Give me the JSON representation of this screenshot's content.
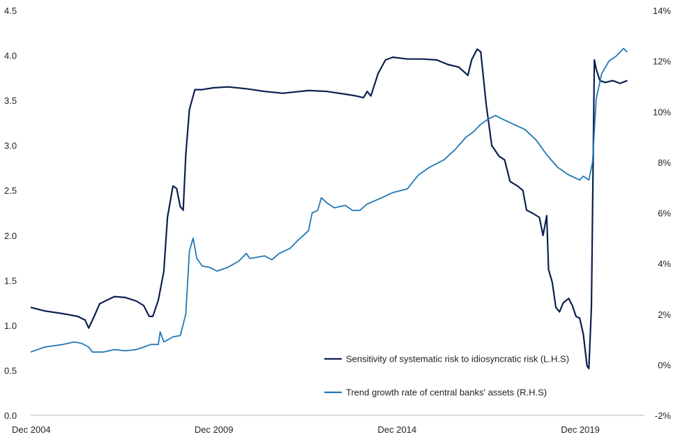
{
  "chart_data": {
    "type": "line",
    "title": "",
    "xlabel": "",
    "x_range": [
      2004.917,
      2021.667
    ],
    "x_ticks": [
      {
        "label": "Dec 2004",
        "value": 2004.917
      },
      {
        "label": "Dec 2009",
        "value": 2009.917
      },
      {
        "label": "Dec 2014",
        "value": 2014.917
      },
      {
        "label": "Dec 2019",
        "value": 2019.917
      }
    ],
    "y_left": {
      "label": "",
      "range": [
        0,
        4.5
      ],
      "ticks": [
        "0.0",
        "0.5",
        "1.0",
        "1.5",
        "2.0",
        "2.5",
        "3.0",
        "3.5",
        "4.0",
        "4.5"
      ],
      "tick_values": [
        0,
        0.5,
        1.0,
        1.5,
        2.0,
        2.5,
        3.0,
        3.5,
        4.0,
        4.5
      ]
    },
    "y_right": {
      "label": "",
      "range": [
        -2,
        14
      ],
      "ticks": [
        "-2%",
        "0%",
        "2%",
        "4%",
        "6%",
        "8%",
        "10%",
        "12%",
        "14%"
      ],
      "tick_values": [
        -2,
        0,
        2,
        4,
        6,
        8,
        10,
        12,
        14
      ]
    },
    "grid": false,
    "legend_position": "bottom-right",
    "series": [
      {
        "name": "Sensitivity of systematic risk to idiosyncratic risk (L.H.S)",
        "axis": "left",
        "color": "#0b1f4f",
        "points": [
          [
            2004.917,
            1.2
          ],
          [
            2005.3,
            1.16
          ],
          [
            2005.8,
            1.13
          ],
          [
            2006.2,
            1.1
          ],
          [
            2006.4,
            1.06
          ],
          [
            2006.5,
            0.97
          ],
          [
            2006.65,
            1.1
          ],
          [
            2006.8,
            1.24
          ],
          [
            2007.0,
            1.28
          ],
          [
            2007.2,
            1.32
          ],
          [
            2007.5,
            1.31
          ],
          [
            2007.8,
            1.27
          ],
          [
            2008.0,
            1.22
          ],
          [
            2008.15,
            1.1
          ],
          [
            2008.25,
            1.1
          ],
          [
            2008.4,
            1.28
          ],
          [
            2008.55,
            1.6
          ],
          [
            2008.65,
            2.2
          ],
          [
            2008.8,
            2.55
          ],
          [
            2008.9,
            2.52
          ],
          [
            2009.0,
            2.32
          ],
          [
            2009.08,
            2.28
          ],
          [
            2009.15,
            2.9
          ],
          [
            2009.25,
            3.4
          ],
          [
            2009.4,
            3.62
          ],
          [
            2009.6,
            3.62
          ],
          [
            2009.9,
            3.64
          ],
          [
            2010.3,
            3.65
          ],
          [
            2010.8,
            3.63
          ],
          [
            2011.3,
            3.6
          ],
          [
            2011.8,
            3.58
          ],
          [
            2012.5,
            3.61
          ],
          [
            2013.0,
            3.6
          ],
          [
            2013.5,
            3.57
          ],
          [
            2013.8,
            3.55
          ],
          [
            2014.0,
            3.53
          ],
          [
            2014.1,
            3.6
          ],
          [
            2014.2,
            3.55
          ],
          [
            2014.4,
            3.8
          ],
          [
            2014.6,
            3.95
          ],
          [
            2014.8,
            3.98
          ],
          [
            2015.2,
            3.96
          ],
          [
            2015.6,
            3.96
          ],
          [
            2016.0,
            3.95
          ],
          [
            2016.3,
            3.9
          ],
          [
            2016.6,
            3.87
          ],
          [
            2016.85,
            3.78
          ],
          [
            2016.95,
            3.95
          ],
          [
            2017.1,
            4.07
          ],
          [
            2017.2,
            4.04
          ],
          [
            2017.35,
            3.45
          ],
          [
            2017.5,
            3.0
          ],
          [
            2017.7,
            2.88
          ],
          [
            2017.85,
            2.84
          ],
          [
            2018.0,
            2.6
          ],
          [
            2018.2,
            2.55
          ],
          [
            2018.35,
            2.5
          ],
          [
            2018.45,
            2.28
          ],
          [
            2018.6,
            2.25
          ],
          [
            2018.8,
            2.2
          ],
          [
            2018.9,
            2.0
          ],
          [
            2019.0,
            2.22
          ],
          [
            2019.05,
            1.62
          ],
          [
            2019.15,
            1.48
          ],
          [
            2019.25,
            1.2
          ],
          [
            2019.35,
            1.15
          ],
          [
            2019.45,
            1.25
          ],
          [
            2019.6,
            1.3
          ],
          [
            2019.7,
            1.22
          ],
          [
            2019.8,
            1.1
          ],
          [
            2019.9,
            1.08
          ],
          [
            2020.0,
            0.9
          ],
          [
            2020.1,
            0.55
          ],
          [
            2020.15,
            0.52
          ],
          [
            2020.22,
            1.2
          ],
          [
            2020.3,
            3.95
          ],
          [
            2020.35,
            3.85
          ],
          [
            2020.45,
            3.72
          ],
          [
            2020.6,
            3.7
          ],
          [
            2020.8,
            3.72
          ],
          [
            2021.0,
            3.69
          ],
          [
            2021.2,
            3.72
          ]
        ]
      },
      {
        "name": "Trend growth rate of central banks' assets (R.H.S)",
        "axis": "right",
        "color": "#1f77b4",
        "points": [
          [
            2004.917,
            0.5
          ],
          [
            2005.3,
            0.7
          ],
          [
            2005.8,
            0.8
          ],
          [
            2006.1,
            0.9
          ],
          [
            2006.3,
            0.85
          ],
          [
            2006.5,
            0.7
          ],
          [
            2006.6,
            0.5
          ],
          [
            2006.9,
            0.5
          ],
          [
            2007.2,
            0.6
          ],
          [
            2007.5,
            0.55
          ],
          [
            2007.8,
            0.6
          ],
          [
            2008.0,
            0.7
          ],
          [
            2008.2,
            0.8
          ],
          [
            2008.4,
            0.8
          ],
          [
            2008.45,
            1.3
          ],
          [
            2008.55,
            0.9
          ],
          [
            2008.8,
            1.1
          ],
          [
            2009.0,
            1.15
          ],
          [
            2009.15,
            2.0
          ],
          [
            2009.25,
            4.5
          ],
          [
            2009.35,
            5.0
          ],
          [
            2009.45,
            4.2
          ],
          [
            2009.6,
            3.9
          ],
          [
            2009.8,
            3.85
          ],
          [
            2010.0,
            3.7
          ],
          [
            2010.3,
            3.85
          ],
          [
            2010.6,
            4.1
          ],
          [
            2010.8,
            4.4
          ],
          [
            2010.9,
            4.2
          ],
          [
            2011.1,
            4.25
          ],
          [
            2011.3,
            4.3
          ],
          [
            2011.5,
            4.15
          ],
          [
            2011.7,
            4.4
          ],
          [
            2012.0,
            4.6
          ],
          [
            2012.2,
            4.9
          ],
          [
            2012.5,
            5.3
          ],
          [
            2012.6,
            6.0
          ],
          [
            2012.75,
            6.1
          ],
          [
            2012.85,
            6.6
          ],
          [
            2013.0,
            6.4
          ],
          [
            2013.2,
            6.2
          ],
          [
            2013.5,
            6.3
          ],
          [
            2013.7,
            6.1
          ],
          [
            2013.9,
            6.1
          ],
          [
            2014.1,
            6.35
          ],
          [
            2014.5,
            6.6
          ],
          [
            2014.8,
            6.8
          ],
          [
            2015.2,
            6.95
          ],
          [
            2015.5,
            7.5
          ],
          [
            2015.8,
            7.8
          ],
          [
            2016.2,
            8.1
          ],
          [
            2016.5,
            8.5
          ],
          [
            2016.8,
            9.0
          ],
          [
            2017.0,
            9.2
          ],
          [
            2017.2,
            9.5
          ],
          [
            2017.4,
            9.7
          ],
          [
            2017.6,
            9.85
          ],
          [
            2017.8,
            9.7
          ],
          [
            2018.1,
            9.5
          ],
          [
            2018.4,
            9.3
          ],
          [
            2018.7,
            8.9
          ],
          [
            2019.0,
            8.3
          ],
          [
            2019.3,
            7.8
          ],
          [
            2019.6,
            7.5
          ],
          [
            2019.9,
            7.3
          ],
          [
            2020.0,
            7.45
          ],
          [
            2020.15,
            7.3
          ],
          [
            2020.25,
            8.0
          ],
          [
            2020.35,
            10.5
          ],
          [
            2020.5,
            11.5
          ],
          [
            2020.7,
            12.0
          ],
          [
            2020.9,
            12.2
          ],
          [
            2021.1,
            12.5
          ],
          [
            2021.2,
            12.35
          ]
        ]
      }
    ]
  }
}
